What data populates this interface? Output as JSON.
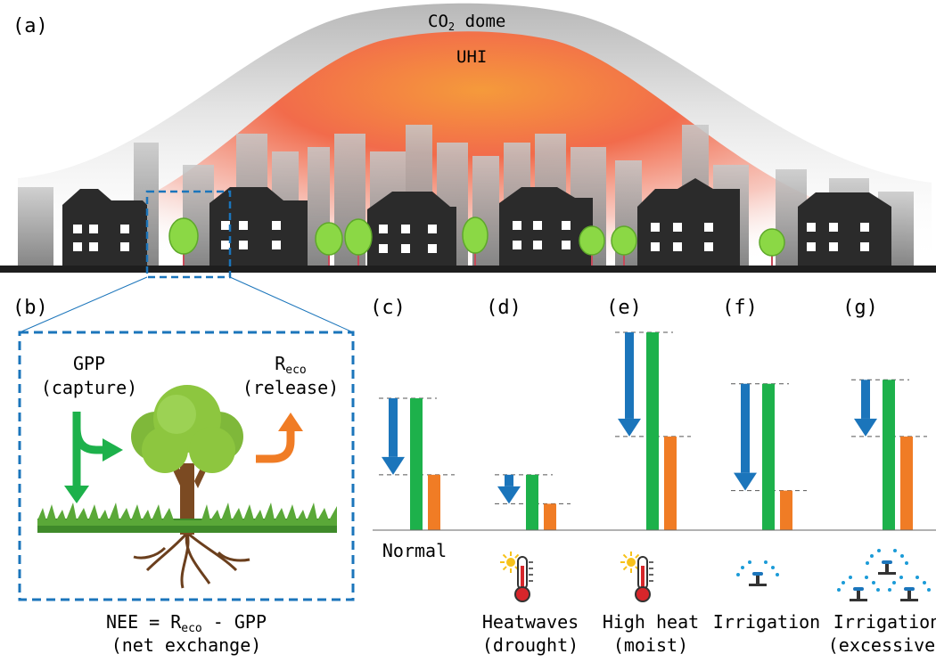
{
  "panel_a": {
    "letter": "(a)",
    "dome_label": "CO",
    "dome_label_sub": "2",
    "dome_label_tail": " dome",
    "uhi_label": "UHI"
  },
  "panel_b": {
    "letter": "(b)",
    "gpp_label": "GPP",
    "gpp_note": "(capture)",
    "reco_label": "R",
    "reco_sub": "eco",
    "reco_note": "(release)",
    "equation_left": "NEE = R",
    "equation_sub": "eco",
    "equation_right": " - GPP",
    "equation_note": "(net exchange)"
  },
  "scenarios": [
    {
      "letter": "(c)",
      "caption_line1": "Normal",
      "caption_line2": "",
      "icon": "none",
      "gpp": 1.0,
      "reco": 0.42
    },
    {
      "letter": "(d)",
      "caption_line1": "Heatwaves",
      "caption_line2": "(drought)",
      "icon": "thermometer-sun-icon",
      "gpp": 0.42,
      "reco": 0.2
    },
    {
      "letter": "(e)",
      "caption_line1": "High heat",
      "caption_line2": "(moist)",
      "icon": "thermometer-sun-icon",
      "gpp": 1.5,
      "reco": 0.71
    },
    {
      "letter": "(f)",
      "caption_line1": "Irrigation",
      "caption_line2": "",
      "icon": "sprinkler-icon",
      "gpp": 1.11,
      "reco": 0.3
    },
    {
      "letter": "(g)",
      "caption_line1": "Irrigation",
      "caption_line2": "(excessive)",
      "icon": "multiple-sprinklers-icon",
      "gpp": 1.14,
      "reco": 0.71
    }
  ],
  "colors": {
    "gpp": "#1db14b",
    "reco": "#f07c25",
    "nee_arrow": "#1b75bb",
    "dashed_box": "#1b75bb",
    "tree_foliage": "#8dc63f"
  }
}
